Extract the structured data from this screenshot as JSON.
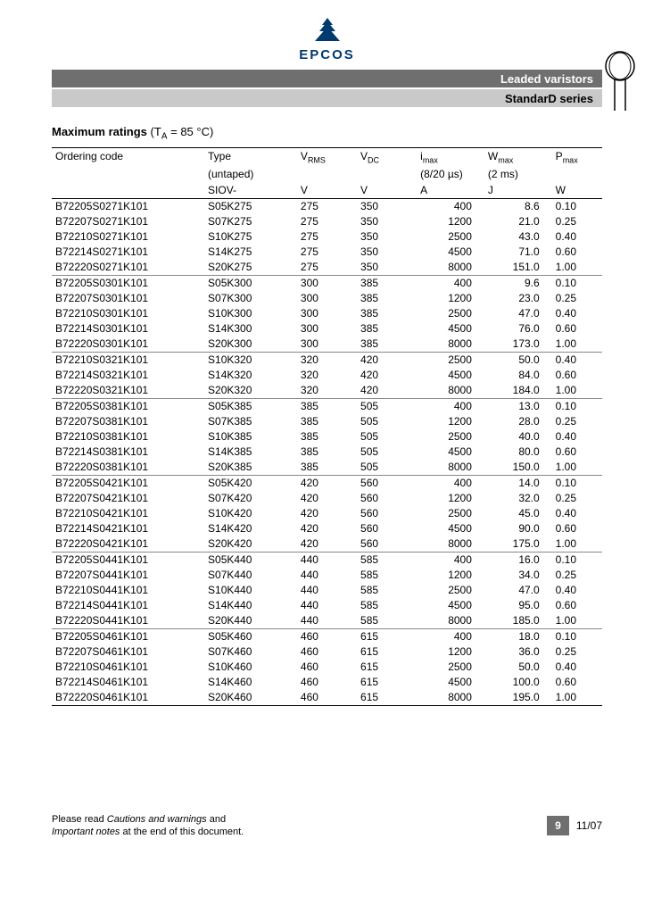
{
  "brand": {
    "name": "EPCOS",
    "logo_color": "#003a6f"
  },
  "header": {
    "line1": "Leaded varistors",
    "line2": "StandarD series"
  },
  "section_title_prefix": "Maximum ratings",
  "section_title_cond": "(T",
  "section_title_sub": "A",
  "section_title_suffix": " = 85 °C)",
  "columns": {
    "ordering": {
      "l1": "Ordering code",
      "l2": "",
      "l3": ""
    },
    "type": {
      "l1": "Type",
      "l2": "(untaped)",
      "l3": "SIOV-"
    },
    "vrms": {
      "sym": "V",
      "sub": "RMS",
      "unit": "V"
    },
    "vdc": {
      "sym": "V",
      "sub": "DC",
      "unit": "V"
    },
    "imax": {
      "sym": "i",
      "sub": "max",
      "cond": "(8/20 µs)",
      "unit": "A"
    },
    "wmax": {
      "sym": "W",
      "sub": "max",
      "cond": "(2 ms)",
      "unit": "J"
    },
    "pmax": {
      "sym": "P",
      "sub": "max",
      "unit": "W"
    }
  },
  "groups": [
    [
      {
        "ord": "B72205S0271K101",
        "type": "S05K275",
        "vrms": "275",
        "vdc": "350",
        "imax": "400",
        "wmax": "8.6",
        "pmax": "0.10"
      },
      {
        "ord": "B72207S0271K101",
        "type": "S07K275",
        "vrms": "275",
        "vdc": "350",
        "imax": "1200",
        "wmax": "21.0",
        "pmax": "0.25"
      },
      {
        "ord": "B72210S0271K101",
        "type": "S10K275",
        "vrms": "275",
        "vdc": "350",
        "imax": "2500",
        "wmax": "43.0",
        "pmax": "0.40"
      },
      {
        "ord": "B72214S0271K101",
        "type": "S14K275",
        "vrms": "275",
        "vdc": "350",
        "imax": "4500",
        "wmax": "71.0",
        "pmax": "0.60"
      },
      {
        "ord": "B72220S0271K101",
        "type": "S20K275",
        "vrms": "275",
        "vdc": "350",
        "imax": "8000",
        "wmax": "151.0",
        "pmax": "1.00"
      }
    ],
    [
      {
        "ord": "B72205S0301K101",
        "type": "S05K300",
        "vrms": "300",
        "vdc": "385",
        "imax": "400",
        "wmax": "9.6",
        "pmax": "0.10"
      },
      {
        "ord": "B72207S0301K101",
        "type": "S07K300",
        "vrms": "300",
        "vdc": "385",
        "imax": "1200",
        "wmax": "23.0",
        "pmax": "0.25"
      },
      {
        "ord": "B72210S0301K101",
        "type": "S10K300",
        "vrms": "300",
        "vdc": "385",
        "imax": "2500",
        "wmax": "47.0",
        "pmax": "0.40"
      },
      {
        "ord": "B72214S0301K101",
        "type": "S14K300",
        "vrms": "300",
        "vdc": "385",
        "imax": "4500",
        "wmax": "76.0",
        "pmax": "0.60"
      },
      {
        "ord": "B72220S0301K101",
        "type": "S20K300",
        "vrms": "300",
        "vdc": "385",
        "imax": "8000",
        "wmax": "173.0",
        "pmax": "1.00"
      }
    ],
    [
      {
        "ord": "B72210S0321K101",
        "type": "S10K320",
        "vrms": "320",
        "vdc": "420",
        "imax": "2500",
        "wmax": "50.0",
        "pmax": "0.40"
      },
      {
        "ord": "B72214S0321K101",
        "type": "S14K320",
        "vrms": "320",
        "vdc": "420",
        "imax": "4500",
        "wmax": "84.0",
        "pmax": "0.60"
      },
      {
        "ord": "B72220S0321K101",
        "type": "S20K320",
        "vrms": "320",
        "vdc": "420",
        "imax": "8000",
        "wmax": "184.0",
        "pmax": "1.00"
      }
    ],
    [
      {
        "ord": "B72205S0381K101",
        "type": "S05K385",
        "vrms": "385",
        "vdc": "505",
        "imax": "400",
        "wmax": "13.0",
        "pmax": "0.10"
      },
      {
        "ord": "B72207S0381K101",
        "type": "S07K385",
        "vrms": "385",
        "vdc": "505",
        "imax": "1200",
        "wmax": "28.0",
        "pmax": "0.25"
      },
      {
        "ord": "B72210S0381K101",
        "type": "S10K385",
        "vrms": "385",
        "vdc": "505",
        "imax": "2500",
        "wmax": "40.0",
        "pmax": "0.40"
      },
      {
        "ord": "B72214S0381K101",
        "type": "S14K385",
        "vrms": "385",
        "vdc": "505",
        "imax": "4500",
        "wmax": "80.0",
        "pmax": "0.60"
      },
      {
        "ord": "B72220S0381K101",
        "type": "S20K385",
        "vrms": "385",
        "vdc": "505",
        "imax": "8000",
        "wmax": "150.0",
        "pmax": "1.00"
      }
    ],
    [
      {
        "ord": "B72205S0421K101",
        "type": "S05K420",
        "vrms": "420",
        "vdc": "560",
        "imax": "400",
        "wmax": "14.0",
        "pmax": "0.10"
      },
      {
        "ord": "B72207S0421K101",
        "type": "S07K420",
        "vrms": "420",
        "vdc": "560",
        "imax": "1200",
        "wmax": "32.0",
        "pmax": "0.25"
      },
      {
        "ord": "B72210S0421K101",
        "type": "S10K420",
        "vrms": "420",
        "vdc": "560",
        "imax": "2500",
        "wmax": "45.0",
        "pmax": "0.40"
      },
      {
        "ord": "B72214S0421K101",
        "type": "S14K420",
        "vrms": "420",
        "vdc": "560",
        "imax": "4500",
        "wmax": "90.0",
        "pmax": "0.60"
      },
      {
        "ord": "B72220S0421K101",
        "type": "S20K420",
        "vrms": "420",
        "vdc": "560",
        "imax": "8000",
        "wmax": "175.0",
        "pmax": "1.00"
      }
    ],
    [
      {
        "ord": "B72205S0441K101",
        "type": "S05K440",
        "vrms": "440",
        "vdc": "585",
        "imax": "400",
        "wmax": "16.0",
        "pmax": "0.10"
      },
      {
        "ord": "B72207S0441K101",
        "type": "S07K440",
        "vrms": "440",
        "vdc": "585",
        "imax": "1200",
        "wmax": "34.0",
        "pmax": "0.25"
      },
      {
        "ord": "B72210S0441K101",
        "type": "S10K440",
        "vrms": "440",
        "vdc": "585",
        "imax": "2500",
        "wmax": "47.0",
        "pmax": "0.40"
      },
      {
        "ord": "B72214S0441K101",
        "type": "S14K440",
        "vrms": "440",
        "vdc": "585",
        "imax": "4500",
        "wmax": "95.0",
        "pmax": "0.60"
      },
      {
        "ord": "B72220S0441K101",
        "type": "S20K440",
        "vrms": "440",
        "vdc": "585",
        "imax": "8000",
        "wmax": "185.0",
        "pmax": "1.00"
      }
    ],
    [
      {
        "ord": "B72205S0461K101",
        "type": "S05K460",
        "vrms": "460",
        "vdc": "615",
        "imax": "400",
        "wmax": "18.0",
        "pmax": "0.10"
      },
      {
        "ord": "B72207S0461K101",
        "type": "S07K460",
        "vrms": "460",
        "vdc": "615",
        "imax": "1200",
        "wmax": "36.0",
        "pmax": "0.25"
      },
      {
        "ord": "B72210S0461K101",
        "type": "S10K460",
        "vrms": "460",
        "vdc": "615",
        "imax": "2500",
        "wmax": "50.0",
        "pmax": "0.40"
      },
      {
        "ord": "B72214S0461K101",
        "type": "S14K460",
        "vrms": "460",
        "vdc": "615",
        "imax": "4500",
        "wmax": "100.0",
        "pmax": "0.60"
      },
      {
        "ord": "B72220S0461K101",
        "type": "S20K460",
        "vrms": "460",
        "vdc": "615",
        "imax": "8000",
        "wmax": "195.0",
        "pmax": "1.00"
      }
    ]
  ],
  "footer": {
    "text_before": "Please read ",
    "em1": "Cautions and warnings",
    "text_mid": " and ",
    "em2": "Important notes",
    "text_after": " at the end of this document.",
    "page": "9",
    "date": "11/07"
  }
}
